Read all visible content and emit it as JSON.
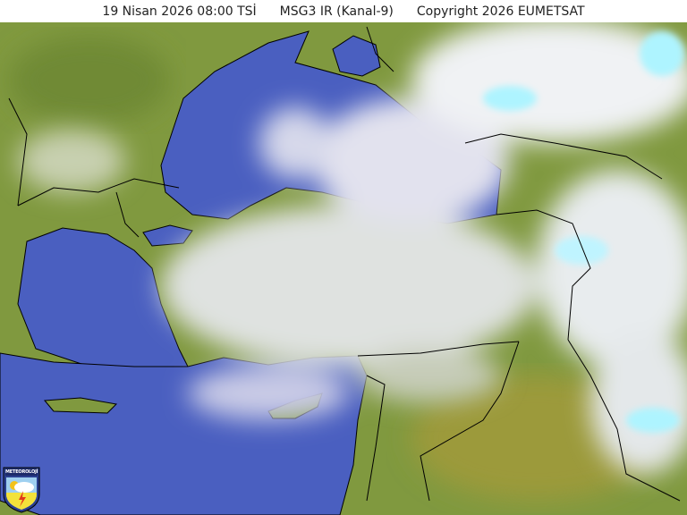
{
  "header": {
    "datetime": "19 Nisan 2026  08:00  TSİ",
    "product": "MSG3 IR (Kanal-9)",
    "copyright": "Copyright  2026  EUMETSAT"
  },
  "logo": {
    "text": "METEOROLOJİ"
  },
  "colors": {
    "land": "#7f9a3e",
    "sea": "#4a5fc0",
    "cloud": "#e6e8ee",
    "cold_cloud_top": "#aef4ff",
    "border": "#000000"
  }
}
